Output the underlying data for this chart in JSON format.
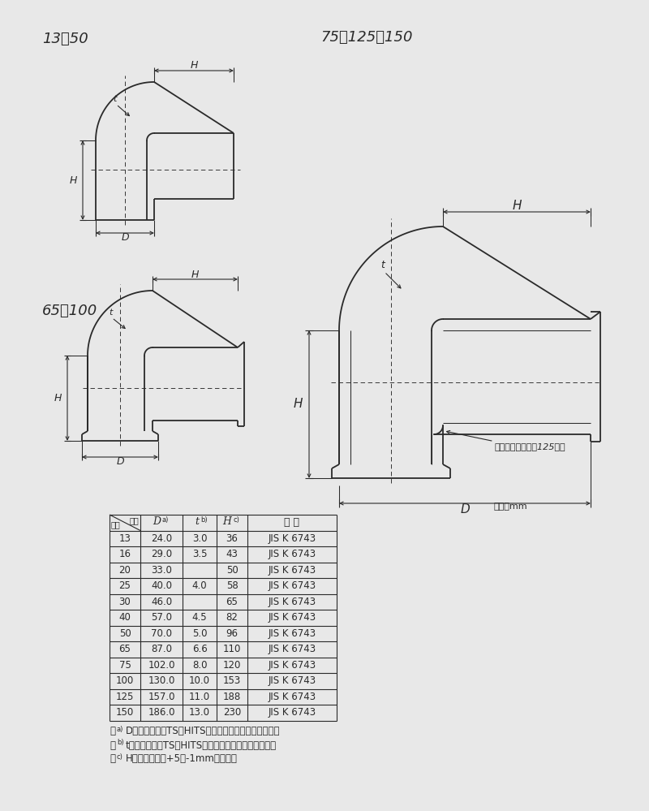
{
  "bg_color": "#e8e8e8",
  "line_color": "#2a2a2a",
  "label_13_50": "13～50",
  "label_65_100": "65・100",
  "label_75_125_150": "75・125・150",
  "corner_rib_text": "コーナーリブは、125のみ",
  "unit_text": "単位：mm",
  "table_rows": [
    [
      "13",
      "24.0",
      "3.0",
      "36",
      "JIS K 6743"
    ],
    [
      "16",
      "29.0",
      "3.5",
      "43",
      "JIS K 6743"
    ],
    [
      "20",
      "33.0",
      "",
      "50",
      "JIS K 6743"
    ],
    [
      "25",
      "40.0",
      "4.0",
      "58",
      "JIS K 6743"
    ],
    [
      "30",
      "46.0",
      "",
      "65",
      "JIS K 6743"
    ],
    [
      "40",
      "57.0",
      "4.5",
      "82",
      "JIS K 6743"
    ],
    [
      "50",
      "70.0",
      "5.0",
      "96",
      "JIS K 6743"
    ],
    [
      "65",
      "87.0",
      "6.6",
      "110",
      "JIS K 6743"
    ],
    [
      "75",
      "102.0",
      "8.0",
      "120",
      "JIS K 6743"
    ],
    [
      "100",
      "130.0",
      "10.0",
      "153",
      "JIS K 6743"
    ],
    [
      "125",
      "157.0",
      "11.0",
      "188",
      "JIS K 6743"
    ],
    [
      "150",
      "186.0",
      "13.0",
      "230",
      "JIS K 6743"
    ]
  ],
  "note_a": "注",
  "note_a_sup": "a)",
  "note_a_text": "Dの許容差は、TS・HITS継手受口共通寸法図による。",
  "note_b": "注",
  "note_b_sup": "b)",
  "note_b_text": "tの許容差は、TS・HITS継手受口共通寸法図による。",
  "note_c": "注",
  "note_c_sup": "c)",
  "note_c_text": "Hの許容差は、+5／-1mmとする。",
  "header_kigoug": "記号",
  "header_yobikei": "呼径",
  "header_kikaku": "規 格"
}
